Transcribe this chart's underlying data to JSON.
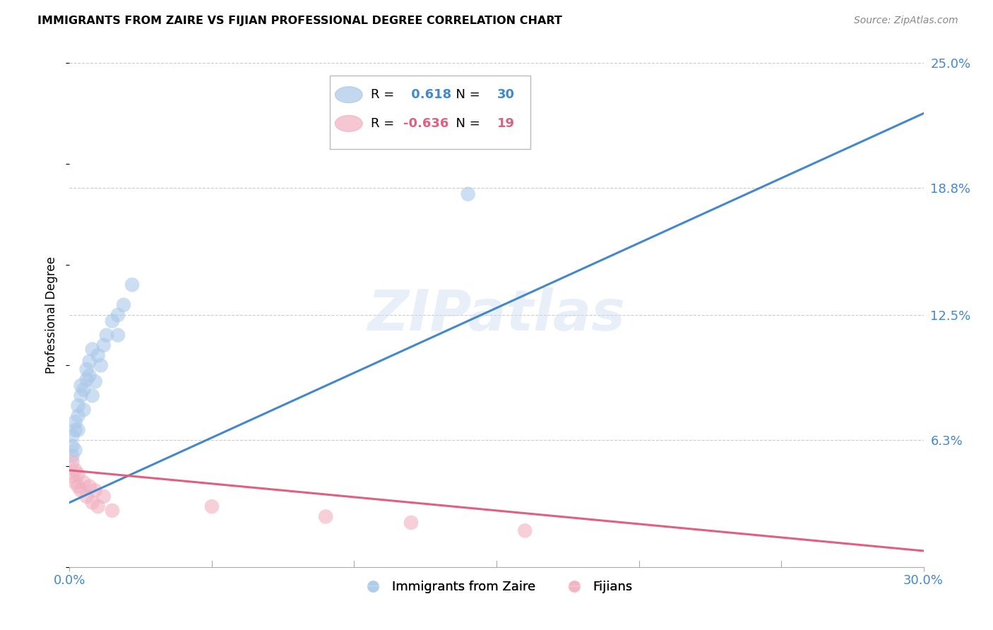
{
  "title": "IMMIGRANTS FROM ZAIRE VS FIJIAN PROFESSIONAL DEGREE CORRELATION CHART",
  "source": "Source: ZipAtlas.com",
  "ylabel": "Professional Degree",
  "xlim": [
    0.0,
    0.3
  ],
  "ylim": [
    0.0,
    0.25
  ],
  "ytick_values": [
    0.063,
    0.125,
    0.188,
    0.25
  ],
  "xtick_values": [
    0.0,
    0.3
  ],
  "minor_xtick_values": [
    0.05,
    0.1,
    0.15,
    0.2,
    0.25
  ],
  "grid_color": "#cccccc",
  "watermark": "ZIPatlas",
  "legend_label1": "Immigrants from Zaire",
  "legend_label2": "Fijians",
  "blue_color": "#aac8e8",
  "pink_color": "#f0b0c0",
  "line_blue": "#4488cc",
  "line_pink": "#e06080",
  "tick_color": "#4488cc",
  "blue_r": 0.618,
  "blue_n": 30,
  "pink_r": -0.636,
  "pink_n": 19,
  "blue_line_x0": 0.0,
  "blue_line_y0": 0.032,
  "blue_line_x1": 0.3,
  "blue_line_y1": 0.225,
  "pink_line_x0": 0.0,
  "pink_line_y0": 0.048,
  "pink_line_x1": 0.3,
  "pink_line_y1": 0.008,
  "blue_scatter_x": [
    0.001,
    0.001,
    0.001,
    0.002,
    0.002,
    0.002,
    0.003,
    0.003,
    0.003,
    0.004,
    0.004,
    0.005,
    0.005,
    0.006,
    0.006,
    0.007,
    0.007,
    0.008,
    0.008,
    0.009,
    0.01,
    0.011,
    0.012,
    0.013,
    0.015,
    0.017,
    0.017,
    0.019,
    0.022,
    0.14
  ],
  "blue_scatter_y": [
    0.055,
    0.06,
    0.065,
    0.058,
    0.068,
    0.072,
    0.075,
    0.08,
    0.068,
    0.085,
    0.09,
    0.078,
    0.088,
    0.093,
    0.098,
    0.095,
    0.102,
    0.085,
    0.108,
    0.092,
    0.105,
    0.1,
    0.11,
    0.115,
    0.122,
    0.115,
    0.125,
    0.13,
    0.14,
    0.185
  ],
  "pink_scatter_x": [
    0.001,
    0.001,
    0.002,
    0.002,
    0.003,
    0.003,
    0.004,
    0.005,
    0.006,
    0.007,
    0.008,
    0.009,
    0.01,
    0.012,
    0.015,
    0.05,
    0.09,
    0.12,
    0.16
  ],
  "pink_scatter_y": [
    0.045,
    0.052,
    0.042,
    0.048,
    0.04,
    0.046,
    0.038,
    0.042,
    0.035,
    0.04,
    0.032,
    0.038,
    0.03,
    0.035,
    0.028,
    0.03,
    0.025,
    0.022,
    0.018
  ]
}
